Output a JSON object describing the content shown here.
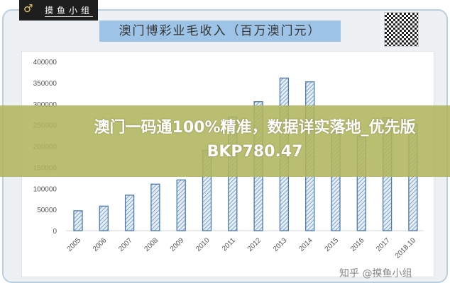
{
  "logo": {
    "text": "摸鱼小组"
  },
  "chart_data": {
    "type": "bar",
    "title": "澳门博彩业毛收入（百万澳门元）",
    "categories": [
      "2005",
      "2006",
      "2007",
      "2008",
      "2009",
      "2010",
      "2011",
      "2012",
      "2013",
      "2014",
      "2015",
      "2016",
      "2017",
      "2018.10"
    ],
    "values": [
      47000,
      58000,
      84000,
      110000,
      120000,
      190000,
      269000,
      305000,
      361000,
      352000,
      232000,
      224000,
      267000,
      252000
    ],
    "ylim": [
      0,
      400000
    ],
    "yticks": [
      "0",
      "50000",
      "100000",
      "150000",
      "200000",
      "250000",
      "300000",
      "350000",
      "400000"
    ],
    "xlabel": "",
    "ylabel": "",
    "grid": false,
    "bar_color": "#4a7ab0"
  },
  "banner": {
    "text": "澳门一码通100%精准，数据详实落地_优先版BKP780.47"
  },
  "watermark": "知乎 @摸鱼小组"
}
